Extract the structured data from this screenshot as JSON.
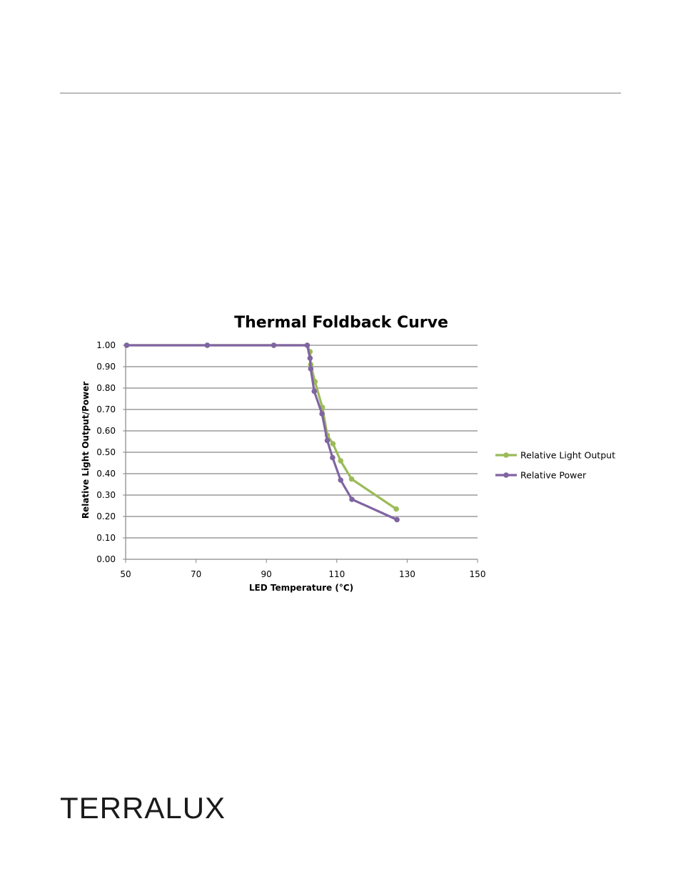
{
  "brand": {
    "name": "TERRALUX"
  },
  "chart_data": {
    "type": "line",
    "title": "Thermal Foldback Curve",
    "xlabel": "LED Temperature (°C)",
    "ylabel": "Relative Light Output/Power",
    "xlim": [
      50,
      150
    ],
    "ylim": [
      0,
      1
    ],
    "xticks": [
      50,
      70,
      90,
      110,
      130,
      150
    ],
    "yticks": [
      0,
      0.1,
      0.2,
      0.3,
      0.4,
      0.5,
      0.6,
      0.7,
      0.8,
      0.9,
      1.0
    ],
    "ytick_decimals": 2,
    "grid": true,
    "legend": "right",
    "series": [
      {
        "name": "Relative Light Output",
        "color": "#9bbb59",
        "x": [
          50.3,
          73.2,
          92.1,
          101.6,
          102.4,
          102.6,
          103.8,
          105.9,
          107.3,
          108.9,
          111.1,
          114.2,
          126.9
        ],
        "y": [
          1.0,
          1.0,
          1.0,
          1.0,
          0.97,
          0.91,
          0.83,
          0.71,
          0.58,
          0.54,
          0.46,
          0.375,
          0.235
        ]
      },
      {
        "name": "Relative Power",
        "color": "#8064a2",
        "x": [
          50.3,
          73.2,
          92.1,
          101.6,
          102.4,
          102.6,
          103.6,
          105.8,
          107.3,
          108.8,
          111.1,
          114.3,
          127.1
        ],
        "y": [
          1.0,
          1.0,
          1.0,
          1.0,
          0.94,
          0.89,
          0.785,
          0.68,
          0.555,
          0.475,
          0.37,
          0.28,
          0.185
        ]
      }
    ]
  }
}
